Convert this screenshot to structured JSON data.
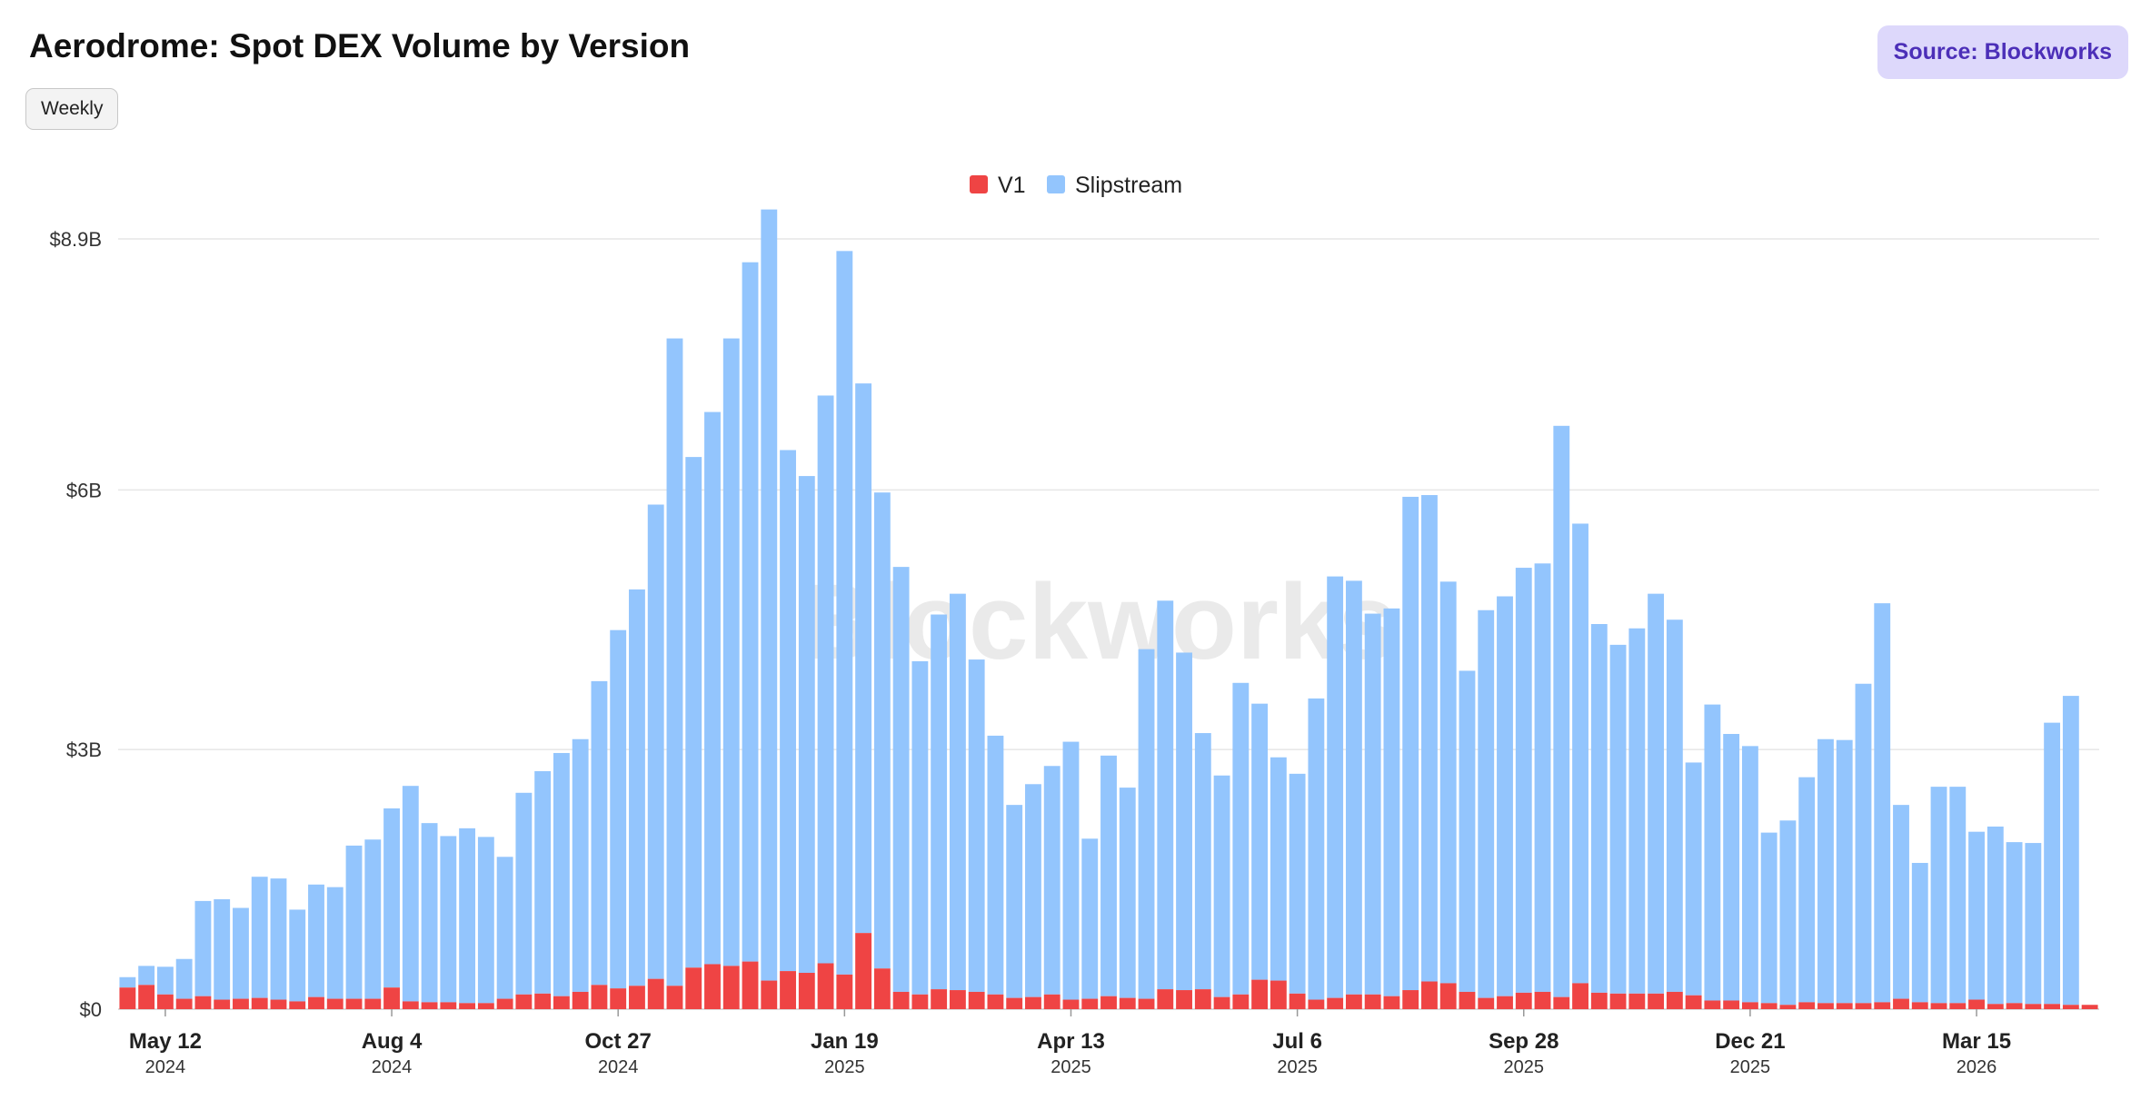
{
  "header": {
    "title": "Aerodrome: Spot DEX Volume by Version",
    "source_label": "Source: Blockworks",
    "interval_label": "Weekly"
  },
  "watermark": "Blockworks",
  "colors": {
    "v1": "#ef4444",
    "slipstream": "#93c5fd",
    "accent": "#4c2fb8"
  },
  "chart_data": {
    "type": "bar",
    "stacked": true,
    "legend_position": "top-center",
    "grid": true,
    "ylim": [
      0,
      8.9
    ],
    "yticks": [
      {
        "value": 0,
        "label": "$0"
      },
      {
        "value": 3,
        "label": "$3B"
      },
      {
        "value": 6,
        "label": "$6B"
      },
      {
        "value": 8.9,
        "label": "$8.9B"
      }
    ],
    "xticks": [
      {
        "index": 2,
        "label": "May 12",
        "year": "2024"
      },
      {
        "index": 14,
        "label": "Aug 4",
        "year": "2024"
      },
      {
        "index": 26,
        "label": "Oct 27",
        "year": "2024"
      },
      {
        "index": 38,
        "label": "Jan 19",
        "year": "2025"
      },
      {
        "index": 50,
        "label": "Apr 13",
        "year": "2025"
      },
      {
        "index": 62,
        "label": "Jul 6",
        "year": "2025"
      },
      {
        "index": 74,
        "label": "Sep 28",
        "year": "2025"
      },
      {
        "index": 86,
        "label": "Dec 21",
        "year": "2025"
      },
      {
        "index": 98,
        "label": "Mar 15",
        "year": "2026"
      }
    ],
    "series": [
      {
        "name": "V1",
        "values": [
          0.25,
          0.28,
          0.17,
          0.12,
          0.15,
          0.11,
          0.12,
          0.13,
          0.11,
          0.09,
          0.14,
          0.12,
          0.12,
          0.12,
          0.25,
          0.09,
          0.08,
          0.08,
          0.07,
          0.07,
          0.12,
          0.17,
          0.18,
          0.15,
          0.2,
          0.28,
          0.24,
          0.27,
          0.35,
          0.27,
          0.48,
          0.52,
          0.5,
          0.55,
          0.33,
          0.44,
          0.42,
          0.53,
          0.4,
          0.88,
          0.47,
          0.2,
          0.17,
          0.23,
          0.22,
          0.2,
          0.17,
          0.13,
          0.14,
          0.17,
          0.11,
          0.12,
          0.15,
          0.13,
          0.12,
          0.23,
          0.22,
          0.23,
          0.14,
          0.17,
          0.34,
          0.33,
          0.18,
          0.11,
          0.13,
          0.17,
          0.17,
          0.15,
          0.22,
          0.32,
          0.3,
          0.2,
          0.13,
          0.15,
          0.19,
          0.2,
          0.14,
          0.3,
          0.19,
          0.18,
          0.18,
          0.18,
          0.2,
          0.16,
          0.1,
          0.1,
          0.08,
          0.07,
          0.05,
          0.08,
          0.07,
          0.07,
          0.07,
          0.08,
          0.12,
          0.08,
          0.07,
          0.07,
          0.11,
          0.06,
          0.07,
          0.06,
          0.06,
          0.05,
          0.05
        ]
      },
      {
        "name": "Slipstream",
        "values": [
          0.12,
          0.22,
          0.32,
          0.46,
          1.1,
          1.16,
          1.05,
          1.4,
          1.4,
          1.06,
          1.3,
          1.29,
          1.77,
          1.84,
          2.07,
          2.49,
          2.07,
          1.92,
          2.02,
          1.92,
          1.64,
          2.33,
          2.57,
          2.81,
          2.92,
          3.51,
          4.14,
          4.58,
          5.48,
          7.48,
          5.9,
          6.38,
          7.25,
          8.08,
          8.91,
          6.02,
          5.74,
          6.56,
          8.36,
          6.35,
          5.5,
          4.91,
          3.85,
          4.33,
          4.58,
          3.84,
          2.99,
          2.23,
          2.46,
          2.64,
          2.98,
          1.85,
          2.78,
          2.43,
          4.04,
          4.49,
          3.9,
          2.96,
          2.56,
          3.6,
          3.19,
          2.58,
          2.54,
          3.48,
          4.87,
          4.78,
          4.4,
          4.48,
          5.7,
          5.62,
          4.64,
          3.71,
          4.48,
          4.62,
          4.91,
          4.95,
          6.6,
          5.31,
          4.26,
          4.03,
          4.22,
          4.62,
          4.3,
          2.69,
          3.42,
          3.08,
          2.96,
          1.97,
          2.13,
          2.6,
          3.05,
          3.04,
          3.69,
          4.61,
          2.24,
          1.61,
          2.5,
          2.5,
          1.94,
          2.05,
          1.86,
          1.86,
          3.25,
          3.57
        ]
      }
    ]
  }
}
